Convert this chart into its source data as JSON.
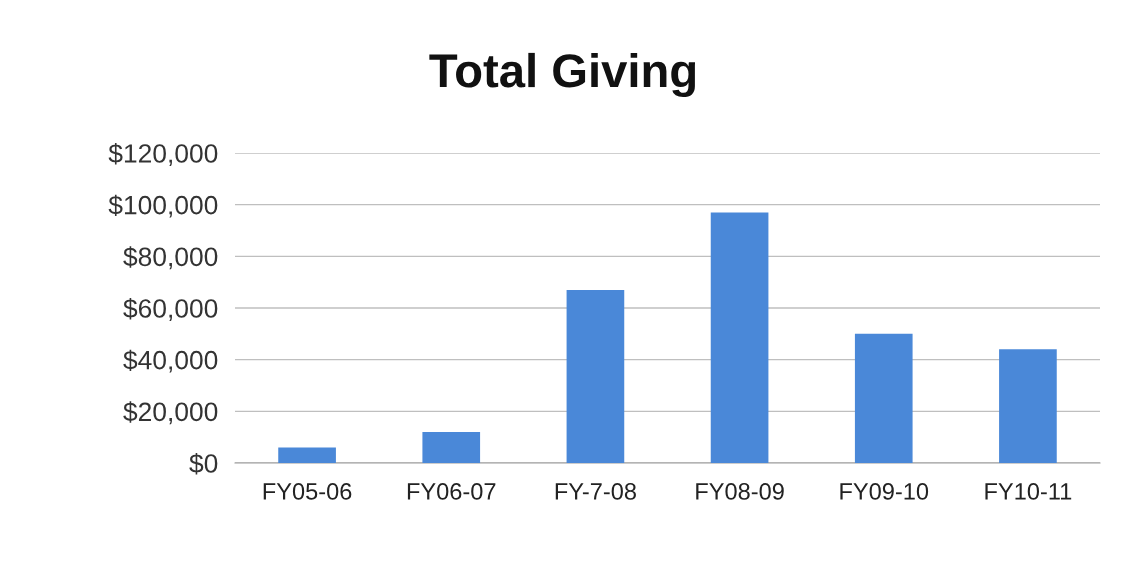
{
  "chart_data": {
    "type": "bar",
    "title": "Total Giving",
    "categories": [
      "FY05-06",
      "FY06-07",
      "FY-7-08",
      "FY08-09",
      "FY09-10",
      "FY10-11"
    ],
    "values": [
      6000,
      12000,
      67000,
      97000,
      50000,
      44000
    ],
    "color": "#4a88d8",
    "ylim": [
      0,
      120000
    ],
    "yticks": [
      {
        "value": 0,
        "label": "$0"
      },
      {
        "value": 20000,
        "label": "$20,000"
      },
      {
        "value": 40000,
        "label": "$40,000"
      },
      {
        "value": 60000,
        "label": "$60,000"
      },
      {
        "value": 80000,
        "label": "$80,000"
      },
      {
        "value": 100000,
        "label": "$100,000"
      },
      {
        "value": 120000,
        "label": "$120,000"
      }
    ],
    "grid": "y"
  }
}
